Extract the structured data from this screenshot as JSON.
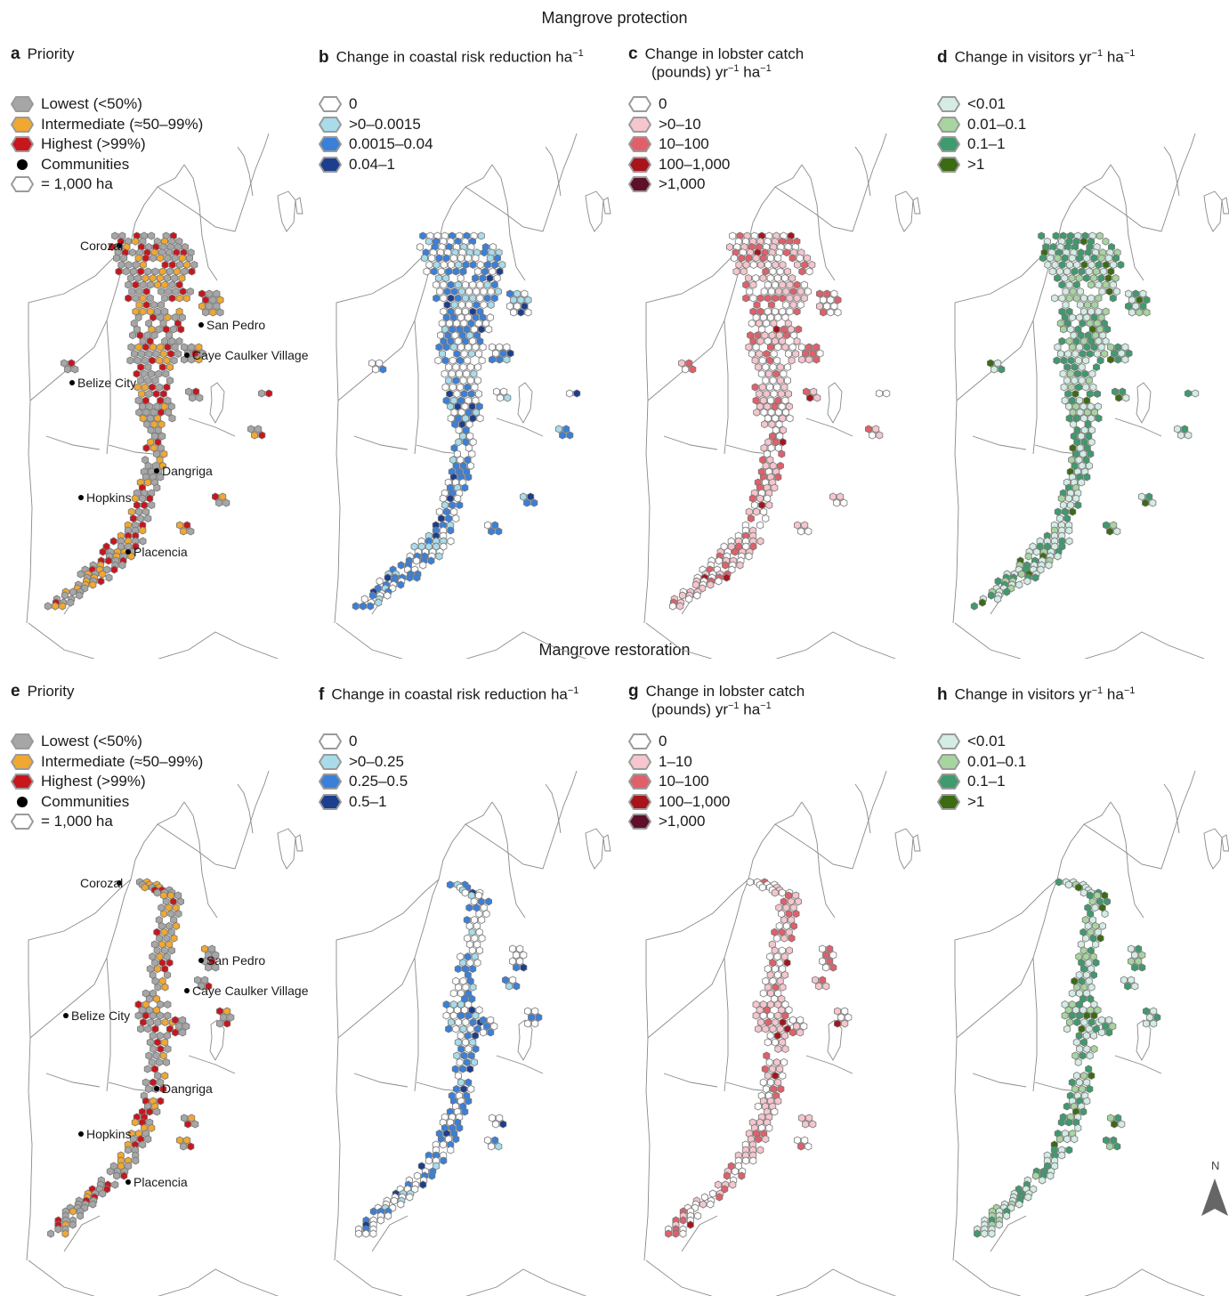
{
  "sections": {
    "protection": "Mangrove protection",
    "restoration": "Mangrove restoration"
  },
  "panels": [
    {
      "id": "a",
      "title": "Priority",
      "title2": "",
      "legend": [
        {
          "label": "Lowest (<50%)",
          "shape": "hex",
          "color": "#a6a6a6"
        },
        {
          "label": "Intermediate (≈50–99%)",
          "shape": "hex",
          "color": "#f0a830"
        },
        {
          "label": "Highest (>99%)",
          "shape": "hex",
          "color": "#c8161d"
        },
        {
          "label": "Communities",
          "shape": "dot",
          "color": "#000000"
        },
        {
          "label": "= 1,000 ha",
          "shape": "hex-outline",
          "color": "#ffffff"
        }
      ],
      "places": [
        "Corozal",
        "San Pedro",
        "Caye Caulker Village",
        "Belize City",
        "Dangriga",
        "Hopkins",
        "Placencia"
      ]
    },
    {
      "id": "b",
      "title": "Change in coastal risk reduction ha",
      "title_sup": "−1",
      "title2": "",
      "legend": [
        {
          "label": "0",
          "shape": "hex",
          "color": "#ffffff"
        },
        {
          "label": ">0–0.0015",
          "shape": "hex",
          "color": "#a8dcea"
        },
        {
          "label": "0.0015–0.04",
          "shape": "hex",
          "color": "#3a80d9"
        },
        {
          "label": "0.04–1",
          "shape": "hex",
          "color": "#1d3e8c"
        }
      ]
    },
    {
      "id": "c",
      "title": "Change in lobster catch",
      "title2": "(pounds) yr",
      "title2_sup": "−1",
      "title2_tail": " ha",
      "title2_sup2": "−1",
      "legend": [
        {
          "label": "0",
          "shape": "hex",
          "color": "#ffffff"
        },
        {
          "label": ">0–10",
          "shape": "hex",
          "color": "#f5c6cd"
        },
        {
          "label": "10–100",
          "shape": "hex",
          "color": "#e0606a"
        },
        {
          "label": "100–1,000",
          "shape": "hex",
          "color": "#a8141c"
        },
        {
          "label": ">1,000",
          "shape": "hex",
          "color": "#5e1028"
        }
      ]
    },
    {
      "id": "d",
      "title": "Change in visitors yr",
      "title_sup": "−1",
      "title_tail": " ha",
      "title_sup2": "−1",
      "title2": "",
      "legend": [
        {
          "label": "<0.01",
          "shape": "hex",
          "color": "#d4ece4"
        },
        {
          "label": "0.01–0.1",
          "shape": "hex",
          "color": "#a8d4a0"
        },
        {
          "label": "0.1–1",
          "shape": "hex",
          "color": "#3f9a6e"
        },
        {
          "label": ">1",
          "shape": "hex",
          "color": "#3c6b12"
        }
      ]
    },
    {
      "id": "e",
      "title": "Priority",
      "title2": "",
      "legend": [
        {
          "label": "Lowest (<50%)",
          "shape": "hex",
          "color": "#a6a6a6"
        },
        {
          "label": "Intermediate (≈50–99%)",
          "shape": "hex",
          "color": "#f0a830"
        },
        {
          "label": "Highest (>99%)",
          "shape": "hex",
          "color": "#c8161d"
        },
        {
          "label": "Communities",
          "shape": "dot",
          "color": "#000000"
        },
        {
          "label": "= 1,000 ha",
          "shape": "hex-outline",
          "color": "#ffffff"
        }
      ],
      "places": [
        "Corozal",
        "San Pedro",
        "Caye Caulker Village",
        "Belize City",
        "Dangriga",
        "Hopkins",
        "Placencia"
      ]
    },
    {
      "id": "f",
      "title": "Change in coastal risk reduction ha",
      "title_sup": "−1",
      "title2": "",
      "legend": [
        {
          "label": "0",
          "shape": "hex",
          "color": "#ffffff"
        },
        {
          "label": ">0–0.25",
          "shape": "hex",
          "color": "#a8dcea"
        },
        {
          "label": "0.25–0.5",
          "shape": "hex",
          "color": "#3a80d9"
        },
        {
          "label": "0.5–1",
          "shape": "hex",
          "color": "#1d3e8c"
        }
      ]
    },
    {
      "id": "g",
      "title": "Change in lobster catch",
      "title2": "(pounds) yr",
      "title2_sup": "−1",
      "title2_tail": " ha",
      "title2_sup2": "−1",
      "legend": [
        {
          "label": "0",
          "shape": "hex",
          "color": "#ffffff"
        },
        {
          "label": "1–10",
          "shape": "hex",
          "color": "#f5c6cd"
        },
        {
          "label": "10–100",
          "shape": "hex",
          "color": "#e0606a"
        },
        {
          "label": "100–1,000",
          "shape": "hex",
          "color": "#a8141c"
        },
        {
          "label": ">1,000",
          "shape": "hex",
          "color": "#5e1028"
        }
      ]
    },
    {
      "id": "h",
      "title": "Change in visitors yr",
      "title_sup": "−1",
      "title_tail": " ha",
      "title_sup2": "−1",
      "title2": "",
      "legend": [
        {
          "label": "<0.01",
          "shape": "hex",
          "color": "#d4ece4"
        },
        {
          "label": "0.01–0.1",
          "shape": "hex",
          "color": "#a8d4a0"
        },
        {
          "label": "0.1–1",
          "shape": "hex",
          "color": "#3f9a6e"
        },
        {
          "label": ">1",
          "shape": "hex",
          "color": "#3c6b12"
        }
      ]
    }
  ],
  "north_label": "N",
  "colors": {
    "outline": "#8a8a8a",
    "hex_stroke": "#777777"
  }
}
